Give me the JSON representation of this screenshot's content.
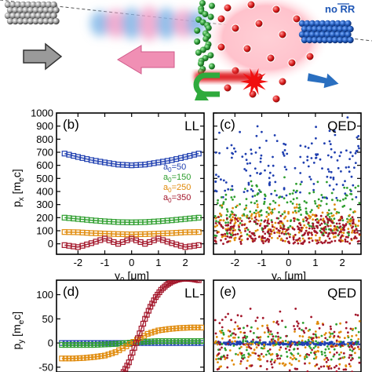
{
  "illustration": {
    "label_no_rr": "no RR",
    "colors": {
      "electron_gray": "#8a8a8a",
      "electron_green": "#2f9a3a",
      "electron_red": "#d81a1a",
      "electron_blue": "#1e56b5",
      "arrow_gray": "#9a9a9a",
      "arrow_pink": "#f08fb4",
      "arrow_green": "#2faa3c",
      "arrow_red": "#e0282c",
      "arrow_blue": "#2a6fc0",
      "pulse_blue": "#7fb6e8",
      "pulse_pink": "#f2a0c8"
    },
    "icons": [
      "right-arrow-gray",
      "left-arrow-pink",
      "u-turn-arrow-green",
      "burst-red",
      "right-arrow-blue"
    ]
  },
  "chart_data": [
    {
      "panel": "(b)",
      "corner_label": "LL",
      "type": "line-with-markers",
      "xlabel_main": "y",
      "xlabel_sub": "0",
      "xlabel_unit": " [μm]",
      "ylabel_main": "p",
      "ylabel_sub": "x",
      "ylabel_unit_left": " [m",
      "ylabel_unit_sub": "e",
      "ylabel_unit_right": "c]",
      "xlim": [
        -2.8,
        2.7
      ],
      "ylim": [
        -80,
        1000
      ],
      "xticks": [
        -2,
        -1,
        0,
        1,
        2
      ],
      "xtick_labels": [
        "-2",
        "-1",
        "0",
        "1",
        "2"
      ],
      "yticks": [
        0,
        100,
        200,
        300,
        400,
        500,
        600,
        700,
        800,
        900,
        1000
      ],
      "ytick_labels": [
        "0",
        "100",
        "200",
        "300",
        "400",
        "500",
        "600",
        "700",
        "800",
        "900",
        "1000"
      ],
      "legend_position": "right-center",
      "series": [
        {
          "name": "a0=50",
          "label_main": "a",
          "label_sub": "0",
          "label_rest": "=50",
          "color": "#1f3fb0",
          "x": [
            -2.5,
            -2.0,
            -1.5,
            -1.0,
            -0.5,
            0.0,
            0.5,
            1.0,
            1.5,
            2.0,
            2.5
          ],
          "values": [
            690,
            664,
            640,
            622,
            606,
            600,
            606,
            622,
            640,
            664,
            690
          ]
        },
        {
          "name": "a0=150",
          "label_main": "a",
          "label_sub": "0",
          "label_rest": "=150",
          "color": "#2e9e2e",
          "x": [
            -2.5,
            -2.0,
            -1.5,
            -1.0,
            -0.5,
            0.0,
            0.5,
            1.0,
            1.5,
            2.0,
            2.5
          ],
          "values": [
            200,
            190,
            180,
            172,
            166,
            164,
            166,
            172,
            180,
            190,
            200
          ]
        },
        {
          "name": "a0=250",
          "label_main": "a",
          "label_sub": "0",
          "label_rest": "=250",
          "color": "#e08a0a",
          "x": [
            -2.5,
            -2.0,
            -1.5,
            -1.0,
            -0.5,
            0.0,
            0.5,
            1.0,
            1.5,
            2.0,
            2.5
          ],
          "values": [
            90,
            88,
            82,
            78,
            74,
            72,
            74,
            78,
            82,
            88,
            90
          ]
        },
        {
          "name": "a0=350",
          "label_main": "a",
          "label_sub": "0",
          "label_rest": "=350",
          "color": "#a3162a",
          "x": [
            -2.5,
            -2.0,
            -1.5,
            -1.0,
            -0.5,
            0.0,
            0.5,
            1.0,
            1.5,
            2.0,
            2.5
          ],
          "values": [
            -10,
            -25,
            5,
            40,
            0,
            40,
            0,
            40,
            5,
            -25,
            -10
          ]
        }
      ]
    },
    {
      "panel": "(c)",
      "corner_label": "QED",
      "type": "scatter",
      "xlabel_main": "y",
      "xlabel_sub": "0",
      "xlabel_unit": " [μm]",
      "xlim": [
        -2.8,
        2.7
      ],
      "ylim": [
        -80,
        1000
      ],
      "xticks": [
        -2,
        -1,
        0,
        1,
        2
      ],
      "xtick_labels": [
        "-2",
        "-1",
        "0",
        "1",
        "2"
      ],
      "yticks": [
        0,
        100,
        200,
        300,
        400,
        500,
        600,
        700,
        800,
        900,
        1000
      ],
      "series": [
        {
          "name": "a0=50",
          "color": "#1f3fb0",
          "y_range": [
            340,
            1000
          ],
          "count": 170
        },
        {
          "name": "a0=150",
          "color": "#2e9e2e",
          "y_range": [
            60,
            520
          ],
          "count": 220
        },
        {
          "name": "a0=250",
          "color": "#e08a0a",
          "y_range": [
            20,
            330
          ],
          "count": 220
        },
        {
          "name": "a0=350",
          "color": "#a3162a",
          "y_range": [
            0,
            230
          ],
          "count": 300
        }
      ]
    },
    {
      "panel": "(d)",
      "corner_label": "LL",
      "type": "line-with-markers",
      "ylabel_main": "p",
      "ylabel_sub": "y",
      "ylabel_unit_left": " [m",
      "ylabel_unit_sub": "e",
      "ylabel_unit_right": "c]",
      "xlim": [
        -2.8,
        2.7
      ],
      "ylim": [
        -60,
        130
      ],
      "yticks": [
        -50,
        0,
        50,
        100
      ],
      "ytick_labels": [
        "-50",
        "0",
        "50",
        "100"
      ],
      "series": [
        {
          "name": "a0=50",
          "color": "#1f3fb0",
          "x": [
            -2.6,
            -2.2,
            -1.8,
            -1.4,
            -1.0,
            -0.6,
            -0.2,
            0.2,
            0.6,
            1.0,
            1.4,
            1.8,
            2.2,
            2.6
          ],
          "values": [
            0,
            0,
            0,
            0,
            0,
            0,
            0,
            0,
            0,
            0,
            0,
            0,
            0,
            0
          ]
        },
        {
          "name": "a0=150",
          "color": "#2e9e2e",
          "x": [
            -2.6,
            -2.2,
            -1.8,
            -1.4,
            -1.0,
            -0.6,
            -0.2,
            0.2,
            0.6,
            1.0,
            1.4,
            1.8,
            2.2,
            2.6
          ],
          "values": [
            -4,
            -4,
            -4,
            -4,
            -3,
            -2,
            0,
            2,
            3,
            4,
            4,
            4,
            4,
            4
          ]
        },
        {
          "name": "a0=250",
          "color": "#e08a0a",
          "x": [
            -2.6,
            -2.2,
            -1.8,
            -1.4,
            -1.0,
            -0.6,
            -0.2,
            0.2,
            0.6,
            1.0,
            1.4,
            1.8,
            2.2,
            2.6
          ],
          "values": [
            -32,
            -32,
            -31,
            -29,
            -26,
            -19,
            -7,
            7,
            19,
            26,
            29,
            31,
            32,
            32
          ]
        },
        {
          "name": "a0=350",
          "color": "#a3162a",
          "x": [
            -0.3,
            -0.1,
            0.1,
            0.3,
            0.5,
            0.7,
            0.9,
            1.1,
            1.3,
            1.5,
            1.7,
            1.9,
            2.1,
            2.3,
            2.5
          ],
          "values": [
            -60,
            -40,
            -10,
            20,
            50,
            75,
            95,
            110,
            120,
            127,
            131,
            133,
            133,
            132,
            130
          ]
        }
      ]
    },
    {
      "panel": "(e)",
      "corner_label": "QED",
      "type": "scatter",
      "xlim": [
        -2.8,
        2.7
      ],
      "ylim": [
        -60,
        130
      ],
      "series": [
        {
          "name": "a0=50",
          "color": "#1f3fb0",
          "y_range": [
            -4,
            4
          ],
          "count": 260
        },
        {
          "name": "a0=150",
          "color": "#2e9e2e",
          "y_range": [
            -35,
            45
          ],
          "count": 140
        },
        {
          "name": "a0=250",
          "color": "#e08a0a",
          "y_range": [
            -50,
            60
          ],
          "count": 160
        },
        {
          "name": "a0=350",
          "color": "#a3162a",
          "y_range": [
            -60,
            80
          ],
          "count": 170
        }
      ]
    }
  ]
}
